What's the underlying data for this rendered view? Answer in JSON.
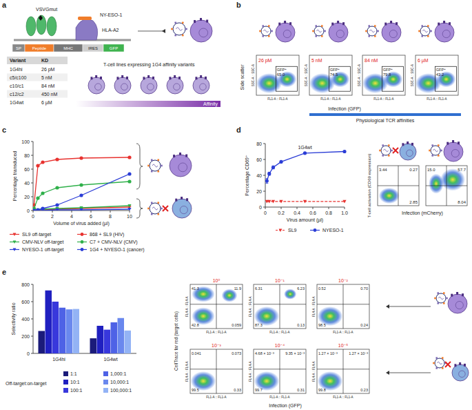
{
  "panel_labels": [
    "a",
    "b",
    "c",
    "d",
    "e"
  ],
  "construct": {
    "labels": [
      "VSVGmut",
      "NY-ESO-1",
      "HLA-A2"
    ],
    "segments": [
      "SP",
      "Peptide",
      "MHC",
      "IRES",
      "GFP"
    ]
  },
  "affinity_table": {
    "header": [
      "Variant",
      "KD"
    ],
    "rows": [
      [
        "1G4hi",
        "26 pM"
      ],
      [
        "c5/c100",
        "5 nM"
      ],
      [
        "c10/c1",
        "84 nM"
      ],
      [
        "c12/c2",
        "450 nM"
      ],
      [
        "1G4wt",
        "6 µM"
      ]
    ]
  },
  "affinity_caption": "T-cell lines expressing 1G4 affinity variants",
  "affinity_bar": "Affinity",
  "flow_b": {
    "y_label": "Side scatter",
    "x_label": "Infection (GFP)",
    "y_axis": "SSC-A :: SSC-A",
    "x_axis": "FL1-A :: FL1-A",
    "gate": "GFP⁺",
    "bracket": "Physiological TCR affinities",
    "plots": [
      {
        "kd": "26 pM",
        "value": "65.0"
      },
      {
        "kd": "5 nM",
        "value": "74.5"
      },
      {
        "kd": "84 nM",
        "value": "79.8"
      },
      {
        "kd": "6 µM",
        "value": "43.2"
      }
    ]
  },
  "chart_data": [
    {
      "type": "line",
      "xlabel": "Volume of virus added (µl)",
      "ylabel": "Percentage transduced",
      "xlim": [
        0,
        10
      ],
      "ylim": [
        0,
        100
      ],
      "xticks": [
        0,
        2,
        4,
        6,
        8,
        10
      ],
      "yticks": [
        0,
        20,
        40,
        60,
        80,
        100
      ],
      "legend": "bottom",
      "x": [
        0.1,
        0.5,
        1,
        2.5,
        5,
        10
      ],
      "series": [
        {
          "name": "SL9 off-target",
          "color": "#e8322f",
          "marker": "triangle",
          "line_style": "solid",
          "values": [
            0,
            1,
            1,
            2,
            3,
            5
          ]
        },
        {
          "name": "CMV-NLV off-target",
          "color": "#2fb04a",
          "marker": "triangle",
          "line_style": "solid",
          "values": [
            0,
            1,
            2,
            3,
            4,
            7
          ]
        },
        {
          "name": "NYESO-1 off-target",
          "color": "#2b3dd6",
          "marker": "triangle",
          "line_style": "solid",
          "values": [
            0,
            0,
            0,
            1,
            1,
            2
          ]
        },
        {
          "name": "868 + SL9 (HIV)",
          "color": "#e8322f",
          "marker": "circle",
          "line_style": "solid",
          "values": [
            8,
            65,
            70,
            74,
            76,
            77
          ]
        },
        {
          "name": "C7 + CMV-NLV (CMV)",
          "color": "#2fb04a",
          "marker": "circle",
          "line_style": "solid",
          "values": [
            3,
            18,
            25,
            33,
            37,
            42
          ]
        },
        {
          "name": "1G4 + NYESO-1 (cancer)",
          "color": "#2b3dd6",
          "marker": "circle",
          "line_style": "solid",
          "values": [
            0,
            1,
            3,
            8,
            22,
            53
          ]
        }
      ]
    },
    {
      "type": "line",
      "title": "1G4wt",
      "xlabel": "Virus amount (µl)",
      "ylabel": "Percentage CD69⁺",
      "xlim": [
        0,
        1
      ],
      "ylim": [
        0,
        80
      ],
      "xticks": [
        0,
        0.2,
        0.4,
        0.6,
        0.8,
        {
          "value": 1,
          "label": "1.0"
        }
      ],
      "yticks": [
        0,
        20,
        40,
        60,
        80
      ],
      "legend": "bottom",
      "x": [
        0.02,
        0.05,
        0.1,
        0.2,
        0.5,
        1
      ],
      "series": [
        {
          "name": "SL9",
          "color": "#e8322f",
          "marker": "triangle",
          "line_style": "dashed",
          "values": [
            7,
            7,
            7,
            7,
            7,
            7
          ]
        },
        {
          "name": "NYESO-1",
          "color": "#2b3dd6",
          "marker": "circle",
          "line_style": "solid",
          "values": [
            33,
            42,
            50,
            57,
            68,
            70
          ],
          "errors": [
            3,
            2,
            2,
            1,
            1,
            1
          ]
        }
      ]
    },
    {
      "type": "bar",
      "ylabel": "Selectivity ratio",
      "legend_title": "Off-target:on-target",
      "legend": "bottom",
      "categories": [
        "1G4hi",
        "1G4wt"
      ],
      "ylim": [
        0,
        800
      ],
      "yticks": [
        0,
        200,
        400,
        600,
        800
      ],
      "series": [
        {
          "name": "1:1",
          "color": "#1b1b7a",
          "values": [
            260,
            175
          ]
        },
        {
          "name": "10:1",
          "color": "#2020c0",
          "values": [
            730,
            320
          ]
        },
        {
          "name": "100:1",
          "color": "#3838dc",
          "values": [
            600,
            275
          ]
        },
        {
          "name": {
            "value": 1000,
            "label": "1,000:1"
          },
          "color": "#4e62e6",
          "values": [
            530,
            360
          ]
        },
        {
          "name": {
            "value": 10000,
            "label": "10,000:1"
          },
          "color": "#6a88ee",
          "values": [
            510,
            410
          ]
        },
        {
          "name": {
            "value": 100000,
            "label": "100,000:1"
          },
          "color": "#93b3f5",
          "values": [
            515,
            265
          ]
        }
      ]
    }
  ],
  "flow_d": {
    "y_label": "T-cell activation (CD69 expression)",
    "x_label": "Infection (mCherry)",
    "plots": [
      {
        "ul": "3.44",
        "ur": "0.27",
        "lr": "2.85"
      },
      {
        "ul": "15.0",
        "ur": "57.7",
        "lr": "8.04"
      }
    ]
  },
  "flow_e": {
    "y_axis": "FL4-A :: FL4-A",
    "x_axis": "FL1-A :: FL1-A",
    "y_label": "CellTrace far red (target cells)",
    "x_label": "Infection (GFP)",
    "plots": [
      {
        "ratio": "10⁰",
        "ul": "41.3",
        "ur": "11.9",
        "ll": "42.8",
        "lr": "0.059"
      },
      {
        "ratio": "10⁻¹",
        "ul": "6.31",
        "ur": "6.23",
        "ll": "87.3",
        "lr": "0.13"
      },
      {
        "ratio": "10⁻²",
        "ul": "0.52",
        "ur": "0.70",
        "ll": "98.5",
        "lr": "0.24"
      },
      {
        "ratio": "10⁻³",
        "ul": "0.041",
        "ur": "0.073",
        "ll": "99.5",
        "lr": "0.33"
      },
      {
        "ratio": "10⁻⁴",
        "ul": "4.68 × 10⁻³",
        "ur": "9.35 × 10⁻³",
        "ll": "99.7",
        "lr": "0.31"
      },
      {
        "ratio": "10⁻⁵",
        "ul": "1.27 × 10⁻³",
        "ur": "1.27 × 10⁻³",
        "ll": "99.8",
        "lr": "0.23"
      }
    ]
  }
}
